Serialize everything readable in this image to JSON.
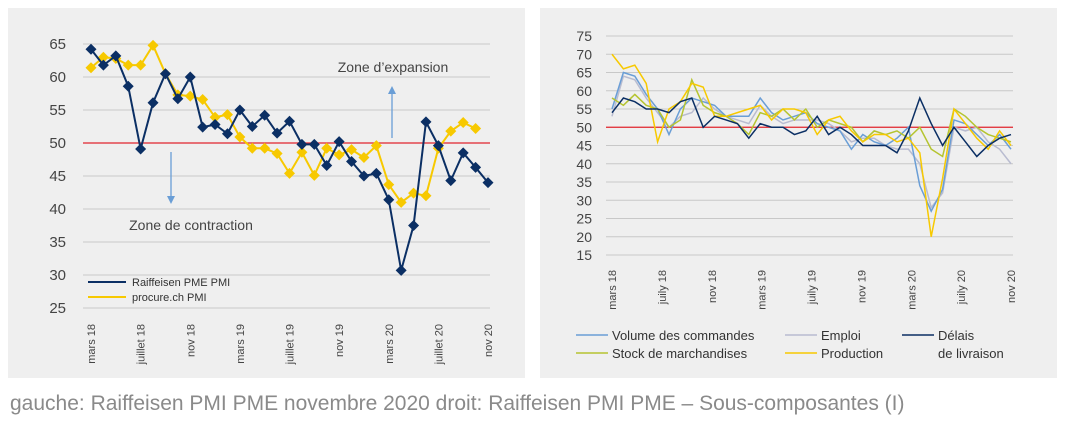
{
  "caption": "gauche: Raiffeisen PMI PME novembre 2020 droit: Raiffeisen PMI PME – Sous-composantes (I)",
  "chart_data": [
    {
      "type": "line",
      "title": "",
      "xlabel": "",
      "ylabel": "",
      "ylim": [
        25,
        65
      ],
      "yticks": [
        "25",
        "30",
        "35",
        "40",
        "45",
        "50",
        "55",
        "60",
        "65"
      ],
      "x_tick_labels": [
        "mars 18",
        "juillet 18",
        "nov 18",
        "mars 19",
        "juillet 19",
        "nov 19",
        "mars 20",
        "juillet 20",
        "nov 20"
      ],
      "x_tick_index": [
        0,
        4,
        8,
        12,
        16,
        20,
        24,
        28,
        32
      ],
      "threshold": 50,
      "threshold_color": "#e0242d",
      "grid": true,
      "legend_position": "bottom-left",
      "annotations": {
        "expansion": "Zone d’expansion",
        "contraction": "Zone de contraction"
      },
      "series": [
        {
          "name": "Raiffeisen PME PMI",
          "color": "#0b2f64",
          "marker": "diamond",
          "values": [
            64.2,
            61.8,
            63.2,
            58.6,
            49.1,
            56.1,
            60.5,
            56.7,
            60.0,
            52.4,
            52.8,
            51.4,
            55.0,
            52.5,
            54.2,
            51.5,
            53.3,
            49.8,
            49.8,
            46.6,
            50.2,
            47.2,
            45.0,
            45.4,
            41.4,
            30.7,
            37.5,
            53.2,
            49.6,
            44.3,
            48.5,
            46.3,
            44.0
          ]
        },
        {
          "name": "procure.ch PMI",
          "color": "#f7c900",
          "marker": "diamond",
          "values": [
            61.4,
            63.0,
            62.8,
            61.8,
            61.8,
            64.8,
            60.5,
            57.3,
            57.1,
            56.6,
            53.9,
            54.3,
            50.9,
            49.2,
            49.2,
            48.4,
            45.4,
            48.6,
            45.1,
            49.2,
            48.2,
            49.0,
            47.8,
            49.6,
            43.7,
            41.0,
            42.4,
            42.0,
            49.2,
            51.8,
            53.1,
            52.2
          ]
        }
      ]
    },
    {
      "type": "line",
      "title": "",
      "xlabel": "",
      "ylabel": "",
      "ylim": [
        15,
        75
      ],
      "yticks": [
        "15",
        "20",
        "25",
        "30",
        "35",
        "40",
        "45",
        "50",
        "55",
        "60",
        "65",
        "70",
        "75"
      ],
      "x_tick_labels": [
        "mars 18",
        "juily 18",
        "nov 18",
        "mars 19",
        "juily 19",
        "nov 19",
        "mars 20",
        "juily 20",
        "nov 20"
      ],
      "x_tick_index": [
        0,
        4,
        8,
        12,
        16,
        20,
        24,
        28,
        32
      ],
      "threshold": 50,
      "threshold_color": "#e0242d",
      "grid": true,
      "legend_position": "bottom",
      "series": [
        {
          "name": "Volume des commandes",
          "color": "#6a9ed6",
          "values": [
            55,
            65,
            64,
            59,
            55,
            48,
            55,
            58,
            57,
            56,
            53,
            53,
            53,
            58,
            54,
            52,
            53,
            54,
            51,
            50,
            49,
            44,
            48,
            46,
            45,
            47,
            50,
            34,
            27,
            33,
            52,
            51,
            48,
            45,
            48,
            44
          ]
        },
        {
          "name": "Emploi",
          "color": "#b9bcd0",
          "values": [
            53,
            64,
            63,
            58,
            54,
            50,
            53,
            54,
            58,
            55,
            53,
            52,
            51,
            56,
            53,
            51,
            52,
            52,
            52,
            51,
            49,
            46,
            47,
            47,
            45,
            44,
            44,
            40,
            28,
            32,
            50,
            49,
            50,
            46,
            44,
            40
          ]
        },
        {
          "name": "Délais de livraison",
          "color": "#0b2f64",
          "values": [
            54,
            58,
            57,
            55,
            55,
            54,
            57,
            58,
            50,
            53,
            52,
            51,
            47,
            51,
            50,
            50,
            48,
            49,
            53,
            48,
            50,
            48,
            45,
            45,
            45,
            43,
            49,
            58,
            51,
            45,
            50,
            46,
            42,
            45,
            47,
            48
          ]
        },
        {
          "name": "Stock de marchandises",
          "color": "#b5c430",
          "values": [
            58,
            56,
            59,
            56,
            55,
            50,
            52,
            63,
            56,
            54,
            53,
            51,
            48,
            54,
            53,
            55,
            52,
            55,
            50,
            52,
            51,
            50,
            46,
            49,
            48,
            49,
            47,
            50,
            44,
            42,
            55,
            53,
            50,
            48,
            47,
            46
          ]
        },
        {
          "name": "Production",
          "color": "#f7c900",
          "values": [
            70,
            66,
            67,
            62,
            46,
            55,
            57,
            62,
            61,
            53,
            53,
            54,
            55,
            56,
            52,
            55,
            55,
            54,
            48,
            52,
            53,
            49,
            46,
            48,
            48,
            46,
            47,
            43,
            20,
            36,
            55,
            51,
            47,
            44,
            49,
            45
          ]
        }
      ],
      "legend": {
        "volume": "Volume des commandes",
        "emploi": "Emploi",
        "delais_1": "Délais",
        "delais_2": "de livraison",
        "stock": "Stock de marchandises",
        "production": "Production"
      }
    }
  ]
}
